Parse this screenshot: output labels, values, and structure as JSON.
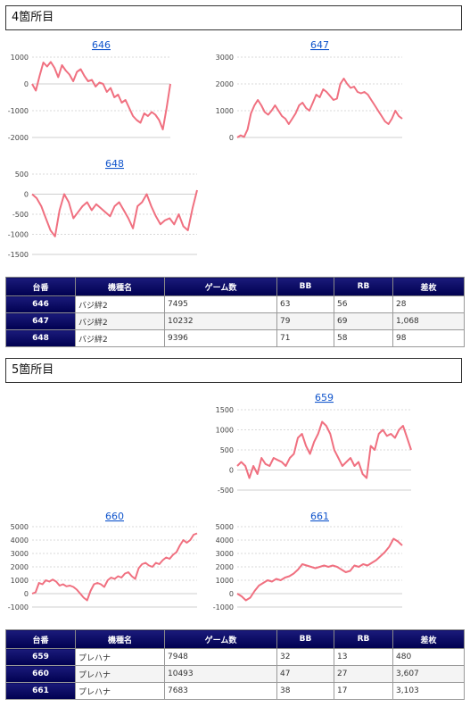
{
  "sections": [
    {
      "title": "4箇所目",
      "table": {
        "headers": [
          "台番",
          "機種名",
          "ゲーム数",
          "BB",
          "RB",
          "差枚"
        ],
        "rows": [
          [
            "646",
            "バジ絆2",
            "7495",
            "63",
            "56",
            "28"
          ],
          [
            "647",
            "バジ絆2",
            "10232",
            "79",
            "69",
            "1,068"
          ],
          [
            "648",
            "バジ絆2",
            "9396",
            "71",
            "58",
            "98"
          ]
        ]
      }
    },
    {
      "title": "5箇所目",
      "table": {
        "headers": [
          "台番",
          "機種名",
          "ゲーム数",
          "BB",
          "RB",
          "差枚"
        ],
        "rows": [
          [
            "659",
            "プレハナ",
            "7948",
            "32",
            "13",
            "480"
          ],
          [
            "660",
            "プレハナ",
            "10493",
            "47",
            "27",
            "3,607"
          ],
          [
            "661",
            "プレハナ",
            "7683",
            "38",
            "17",
            "3,103"
          ]
        ]
      }
    }
  ],
  "chart_data": [
    {
      "type": "line",
      "title": "646",
      "ylim": [
        -2000,
        1000
      ],
      "yticks": [
        1000,
        0,
        -1000,
        -2000
      ],
      "values": [
        0,
        -250,
        300,
        800,
        650,
        820,
        600,
        250,
        700,
        500,
        350,
        100,
        450,
        550,
        300,
        100,
        150,
        -100,
        50,
        0,
        -300,
        -150,
        -500,
        -400,
        -700,
        -600,
        -900,
        -1200,
        -1350,
        -1450,
        -1100,
        -1200,
        -1050,
        -1150,
        -1350,
        -1700,
        -900,
        0
      ]
    },
    {
      "type": "line",
      "title": "647",
      "ylim": [
        0,
        3000
      ],
      "yticks": [
        3000,
        2000,
        1000,
        0
      ],
      "values": [
        0,
        80,
        20,
        300,
        900,
        1200,
        1400,
        1200,
        950,
        850,
        1000,
        1200,
        1000,
        800,
        700,
        500,
        700,
        900,
        1200,
        1300,
        1100,
        1000,
        1300,
        1600,
        1500,
        1800,
        1700,
        1550,
        1400,
        1450,
        2000,
        2200,
        2000,
        1850,
        1900,
        1700,
        1650,
        1700,
        1600,
        1400,
        1200,
        1000,
        800,
        600,
        500,
        700,
        1000,
        800,
        700
      ]
    },
    {
      "type": "line",
      "title": "648",
      "ylim": [
        -1500,
        500
      ],
      "yticks": [
        500,
        0,
        -500,
        -1000,
        -1500
      ],
      "values": [
        0,
        -100,
        -300,
        -600,
        -900,
        -1050,
        -400,
        0,
        -200,
        -600,
        -450,
        -300,
        -200,
        -400,
        -250,
        -350,
        -450,
        -550,
        -300,
        -200,
        -400,
        -600,
        -850,
        -300,
        -200,
        0,
        -300,
        -550,
        -750,
        -650,
        -600,
        -750,
        -500,
        -800,
        -900,
        -350,
        100
      ]
    },
    {
      "type": "line",
      "title": "659",
      "ylim": [
        -500,
        1500
      ],
      "yticks": [
        1500,
        1000,
        500,
        0,
        -500
      ],
      "values": [
        100,
        200,
        100,
        -200,
        100,
        -100,
        300,
        150,
        100,
        300,
        250,
        200,
        100,
        300,
        400,
        800,
        900,
        600,
        400,
        700,
        900,
        1200,
        1100,
        900,
        500,
        300,
        100,
        200,
        300,
        100,
        200,
        -100,
        -200,
        600,
        500,
        900,
        1000,
        850,
        900,
        800,
        1000,
        1100,
        800,
        500
      ]
    },
    {
      "type": "line",
      "title": "660",
      "ylim": [
        -1000,
        5000
      ],
      "yticks": [
        5000,
        4000,
        3000,
        2000,
        1000,
        0,
        -1000
      ],
      "values": [
        0,
        100,
        800,
        700,
        1000,
        900,
        1050,
        900,
        600,
        700,
        550,
        600,
        500,
        300,
        0,
        -300,
        -500,
        200,
        700,
        800,
        700,
        500,
        1000,
        1200,
        1100,
        1300,
        1200,
        1500,
        1600,
        1300,
        1100,
        1900,
        2200,
        2300,
        2100,
        2000,
        2300,
        2200,
        2500,
        2700,
        2600,
        2900,
        3100,
        3600,
        4000,
        3800,
        4000,
        4400,
        4500
      ]
    },
    {
      "type": "line",
      "title": "661",
      "ylim": [
        -1000,
        5000
      ],
      "yticks": [
        5000,
        4000,
        3000,
        2000,
        1000,
        0,
        -1000
      ],
      "values": [
        0,
        -200,
        -500,
        -300,
        200,
        600,
        800,
        1000,
        900,
        1100,
        1000,
        1200,
        1300,
        1500,
        1800,
        2200,
        2100,
        2000,
        1900,
        2000,
        2100,
        2000,
        2100,
        2000,
        1800,
        1600,
        1700,
        2100,
        2000,
        2200,
        2100,
        2300,
        2500,
        2800,
        3100,
        3500,
        4100,
        3900,
        3600
      ]
    }
  ]
}
